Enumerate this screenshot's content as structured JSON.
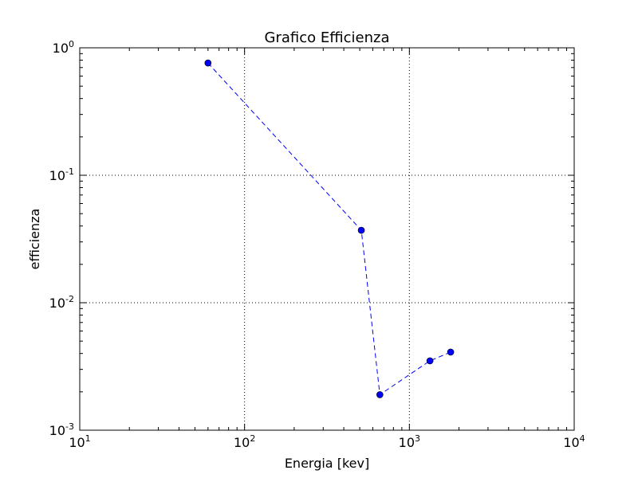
{
  "chart_data": {
    "type": "line",
    "title": "Grafico Efficienza",
    "xlabel": "Energia [kev]",
    "ylabel": "efficienza",
    "xscale": "log",
    "yscale": "log",
    "xlim": [
      10,
      10000
    ],
    "ylim": [
      0.001,
      1
    ],
    "grid": true,
    "legend": "none",
    "x_ticks": [
      {
        "base": "10",
        "exp": "1",
        "value": 10
      },
      {
        "base": "10",
        "exp": "2",
        "value": 100
      },
      {
        "base": "10",
        "exp": "3",
        "value": 1000
      },
      {
        "base": "10",
        "exp": "4",
        "value": 10000
      }
    ],
    "y_ticks": [
      {
        "base": "10",
        "exp": "-3",
        "value": 0.001
      },
      {
        "base": "10",
        "exp": "-2",
        "value": 0.01
      },
      {
        "base": "10",
        "exp": "-1",
        "value": 0.1
      },
      {
        "base": "10",
        "exp": "0",
        "value": 1
      }
    ],
    "series": [
      {
        "color": "#0000ff",
        "linestyle": "dashed",
        "marker": "circle",
        "x": [
          60,
          511,
          662,
          1333,
          1780
        ],
        "y": [
          0.76,
          0.037,
          0.0019,
          0.0035,
          0.0041
        ]
      }
    ]
  }
}
